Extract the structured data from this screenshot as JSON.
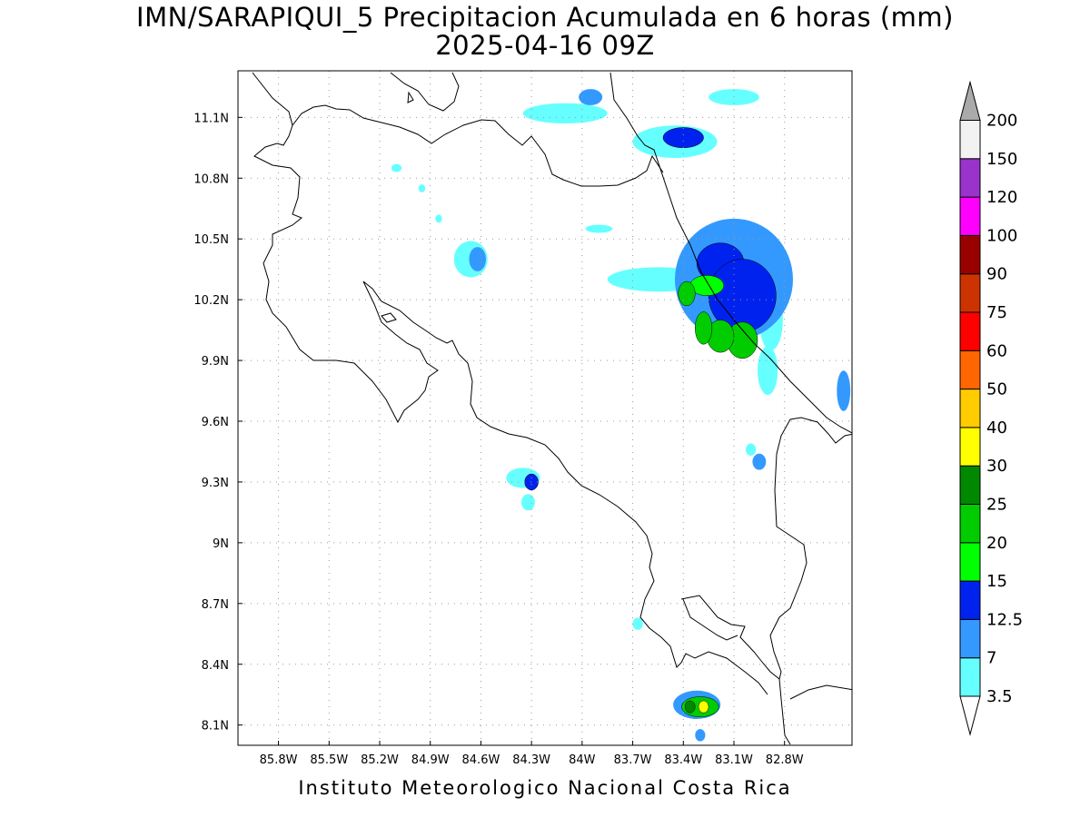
{
  "title": {
    "line1": "IMN/SARAPIQUI_5 Precipitacion Acumulada en 6 horas (mm)",
    "line2": "2025-04-16 09Z"
  },
  "footer": "Instituto Meteorologico Nacional Costa Rica",
  "map": {
    "lon_range": [
      -86.04,
      -82.4
    ],
    "lat_range": [
      8.0,
      11.33
    ],
    "lon_ticks": [
      {
        "value": -85.8,
        "label": "85.8W"
      },
      {
        "value": -85.5,
        "label": "85.5W"
      },
      {
        "value": -85.2,
        "label": "85.2W"
      },
      {
        "value": -84.9,
        "label": "84.9W"
      },
      {
        "value": -84.6,
        "label": "84.6W"
      },
      {
        "value": -84.3,
        "label": "84.3W"
      },
      {
        "value": -84.0,
        "label": "84W"
      },
      {
        "value": -83.7,
        "label": "83.7W"
      },
      {
        "value": -83.4,
        "label": "83.4W"
      },
      {
        "value": -83.1,
        "label": "83.1W"
      },
      {
        "value": -82.8,
        "label": "82.8W"
      }
    ],
    "lat_ticks": [
      {
        "value": 11.1,
        "label": "11.1N"
      },
      {
        "value": 10.8,
        "label": "10.8N"
      },
      {
        "value": 10.5,
        "label": "10.5N"
      },
      {
        "value": 10.2,
        "label": "10.2N"
      },
      {
        "value": 9.9,
        "label": "9.9N"
      },
      {
        "value": 9.6,
        "label": "9.6N"
      },
      {
        "value": 9.3,
        "label": "9.3N"
      },
      {
        "value": 9.0,
        "label": "9N"
      },
      {
        "value": 8.7,
        "label": "8.7N"
      },
      {
        "value": 8.4,
        "label": "8.4N"
      },
      {
        "value": 8.1,
        "label": "8.1N"
      }
    ],
    "grid": true,
    "precip_cells": [
      {
        "lon": -83.05,
        "lat": 10.0,
        "level": 5,
        "rx": 0.09,
        "ry": 0.09
      },
      {
        "lon": -83.18,
        "lat": 10.02,
        "level": 5,
        "rx": 0.08,
        "ry": 0.08
      },
      {
        "lon": -83.28,
        "lat": 10.06,
        "level": 5,
        "rx": 0.05,
        "ry": 0.08
      },
      {
        "lon": -83.38,
        "lat": 10.23,
        "level": 5,
        "rx": 0.05,
        "ry": 0.06
      },
      {
        "lon": -83.26,
        "lat": 10.27,
        "level": 4,
        "rx": 0.1,
        "ry": 0.05
      },
      {
        "lon": -83.18,
        "lat": 10.38,
        "level": 3,
        "rx": 0.14,
        "ry": 0.1
      },
      {
        "lon": -83.05,
        "lat": 10.22,
        "level": 3,
        "rx": 0.2,
        "ry": 0.18
      },
      {
        "lon": -83.1,
        "lat": 10.3,
        "level": 2,
        "rx": 0.35,
        "ry": 0.3
      },
      {
        "lon": -83.55,
        "lat": 10.3,
        "level": 1,
        "rx": 0.3,
        "ry": 0.06
      },
      {
        "lon": -82.88,
        "lat": 10.1,
        "level": 1,
        "rx": 0.07,
        "ry": 0.15
      },
      {
        "lon": -82.9,
        "lat": 9.85,
        "level": 1,
        "rx": 0.06,
        "ry": 0.12
      },
      {
        "lon": -82.45,
        "lat": 9.75,
        "level": 2,
        "rx": 0.04,
        "ry": 0.1
      },
      {
        "lon": -83.4,
        "lat": 11.0,
        "level": 3,
        "rx": 0.12,
        "ry": 0.05
      },
      {
        "lon": -83.45,
        "lat": 10.98,
        "level": 1,
        "rx": 0.25,
        "ry": 0.08
      },
      {
        "lon": -83.95,
        "lat": 11.2,
        "level": 2,
        "rx": 0.07,
        "ry": 0.04
      },
      {
        "lon": -84.1,
        "lat": 11.12,
        "level": 1,
        "rx": 0.25,
        "ry": 0.05
      },
      {
        "lon": -83.1,
        "lat": 11.2,
        "level": 1,
        "rx": 0.15,
        "ry": 0.04
      },
      {
        "lon": -84.62,
        "lat": 10.4,
        "level": 2,
        "rx": 0.05,
        "ry": 0.06
      },
      {
        "lon": -84.66,
        "lat": 10.4,
        "level": 1,
        "rx": 0.1,
        "ry": 0.09
      },
      {
        "lon": -83.9,
        "lat": 10.55,
        "level": 1,
        "rx": 0.08,
        "ry": 0.02
      },
      {
        "lon": -84.3,
        "lat": 9.3,
        "level": 3,
        "rx": 0.04,
        "ry": 0.04
      },
      {
        "lon": -84.35,
        "lat": 9.32,
        "level": 1,
        "rx": 0.1,
        "ry": 0.05
      },
      {
        "lon": -84.32,
        "lat": 9.2,
        "level": 1,
        "rx": 0.04,
        "ry": 0.04
      },
      {
        "lon": -82.95,
        "lat": 9.4,
        "level": 2,
        "rx": 0.04,
        "ry": 0.04
      },
      {
        "lon": -83.0,
        "lat": 9.46,
        "level": 1,
        "rx": 0.03,
        "ry": 0.03
      },
      {
        "lon": -83.28,
        "lat": 8.19,
        "level": 7,
        "rx": 0.03,
        "ry": 0.03
      },
      {
        "lon": -83.36,
        "lat": 8.19,
        "level": 6,
        "rx": 0.03,
        "ry": 0.03
      },
      {
        "lon": -83.3,
        "lat": 8.19,
        "level": 5,
        "rx": 0.11,
        "ry": 0.05
      },
      {
        "lon": -83.32,
        "lat": 8.2,
        "level": 2,
        "rx": 0.14,
        "ry": 0.07
      },
      {
        "lon": -83.3,
        "lat": 8.05,
        "level": 2,
        "rx": 0.03,
        "ry": 0.03
      },
      {
        "lon": -83.67,
        "lat": 8.6,
        "level": 1,
        "rx": 0.03,
        "ry": 0.03
      },
      {
        "lon": -84.85,
        "lat": 10.6,
        "level": 1,
        "rx": 0.02,
        "ry": 0.02
      },
      {
        "lon": -85.1,
        "lat": 10.85,
        "level": 1,
        "rx": 0.03,
        "ry": 0.02
      },
      {
        "lon": -84.95,
        "lat": 10.75,
        "level": 1,
        "rx": 0.02,
        "ry": 0.02
      }
    ]
  },
  "colorbar": {
    "levels": [
      "3.5",
      "7",
      "12.5",
      "15",
      "20",
      "25",
      "30",
      "40",
      "50",
      "60",
      "75",
      "90",
      "100",
      "120",
      "150",
      "200"
    ],
    "colors": [
      "#ffffff",
      "#66ffff",
      "#3399ff",
      "#0022ee",
      "#00ff00",
      "#00cc00",
      "#008800",
      "#ffff00",
      "#ffcc00",
      "#ff6600",
      "#ff0000",
      "#cc3300",
      "#990000",
      "#ff00ff",
      "#9933cc",
      "#f2f2f2",
      "#aaaaaa"
    ]
  }
}
